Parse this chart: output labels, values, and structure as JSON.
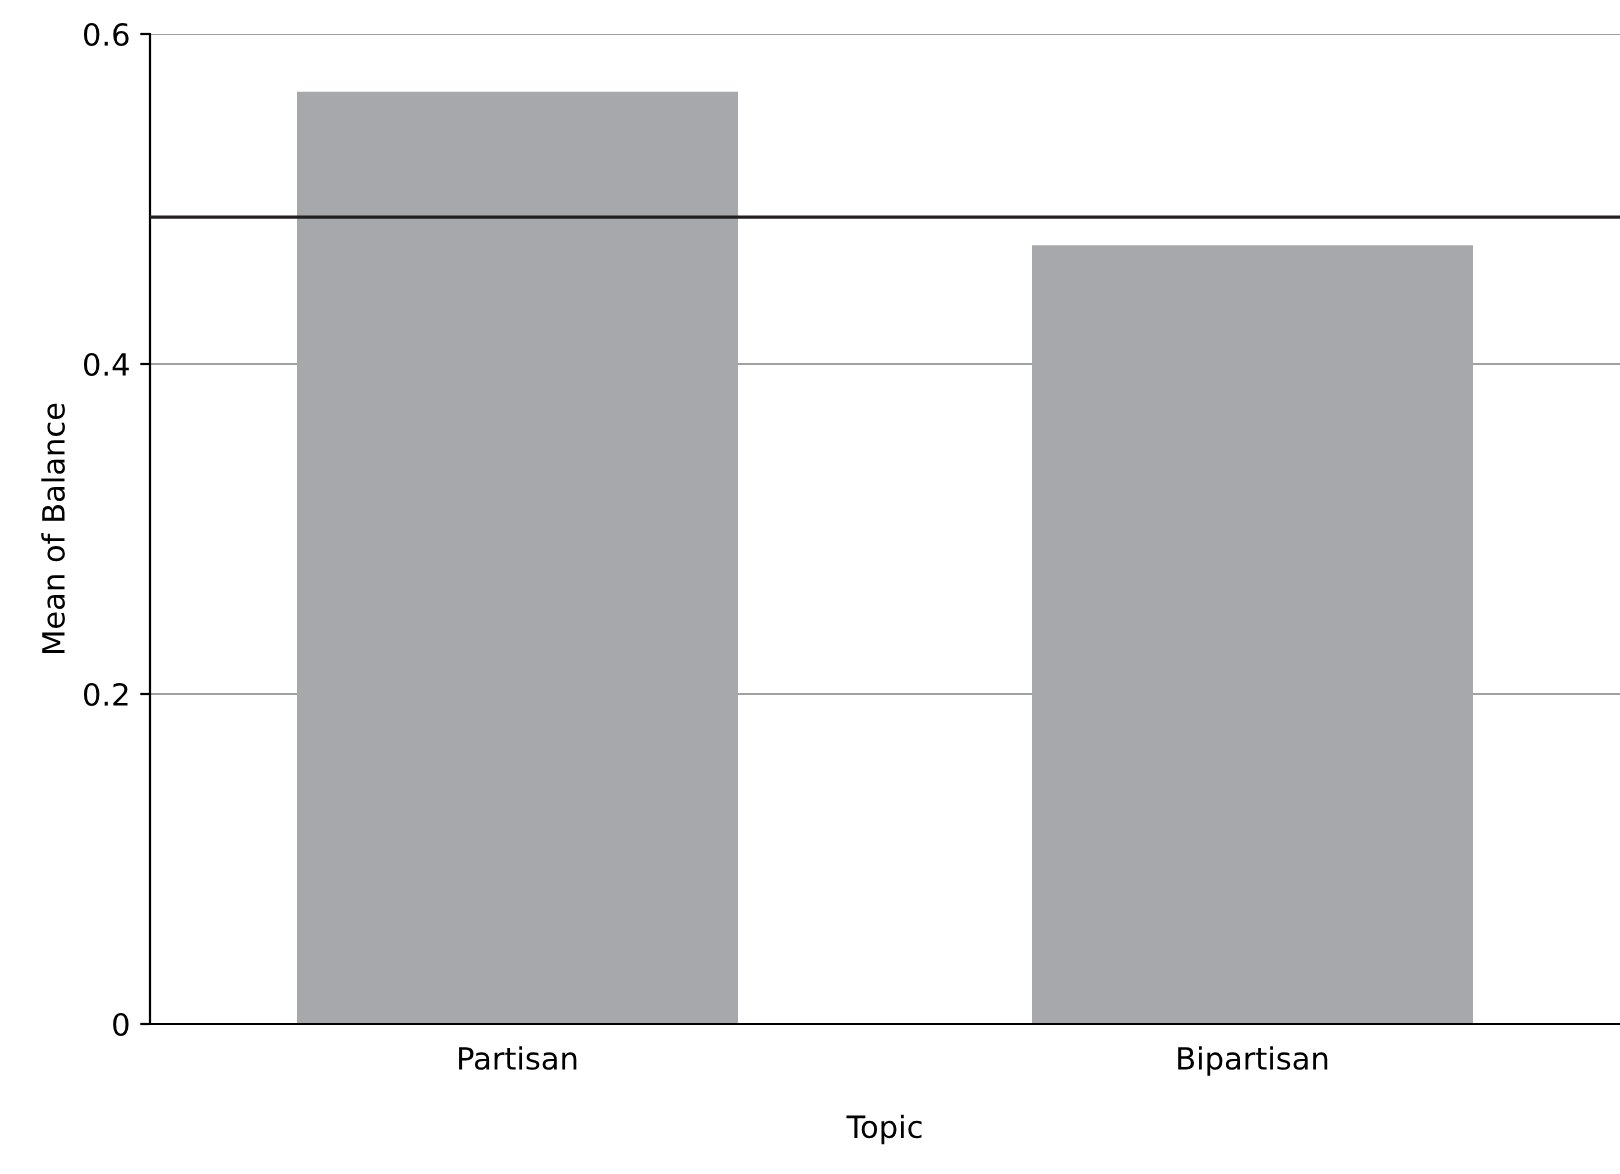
{
  "chart_data": {
    "type": "bar",
    "xlabel": "Topic",
    "ylabel": "Mean of Balance",
    "categories": [
      "Partisan",
      "Bipartisan"
    ],
    "values": [
      0.565,
      0.472
    ],
    "color": "#a7a8ac",
    "ylim": [
      0,
      0.6
    ],
    "yticks": [
      0,
      0.2,
      0.4,
      0.6
    ],
    "grid": "y",
    "ref_lines": [
      {
        "axis": "y",
        "value": 0.489,
        "color": "#231f20"
      }
    ]
  }
}
